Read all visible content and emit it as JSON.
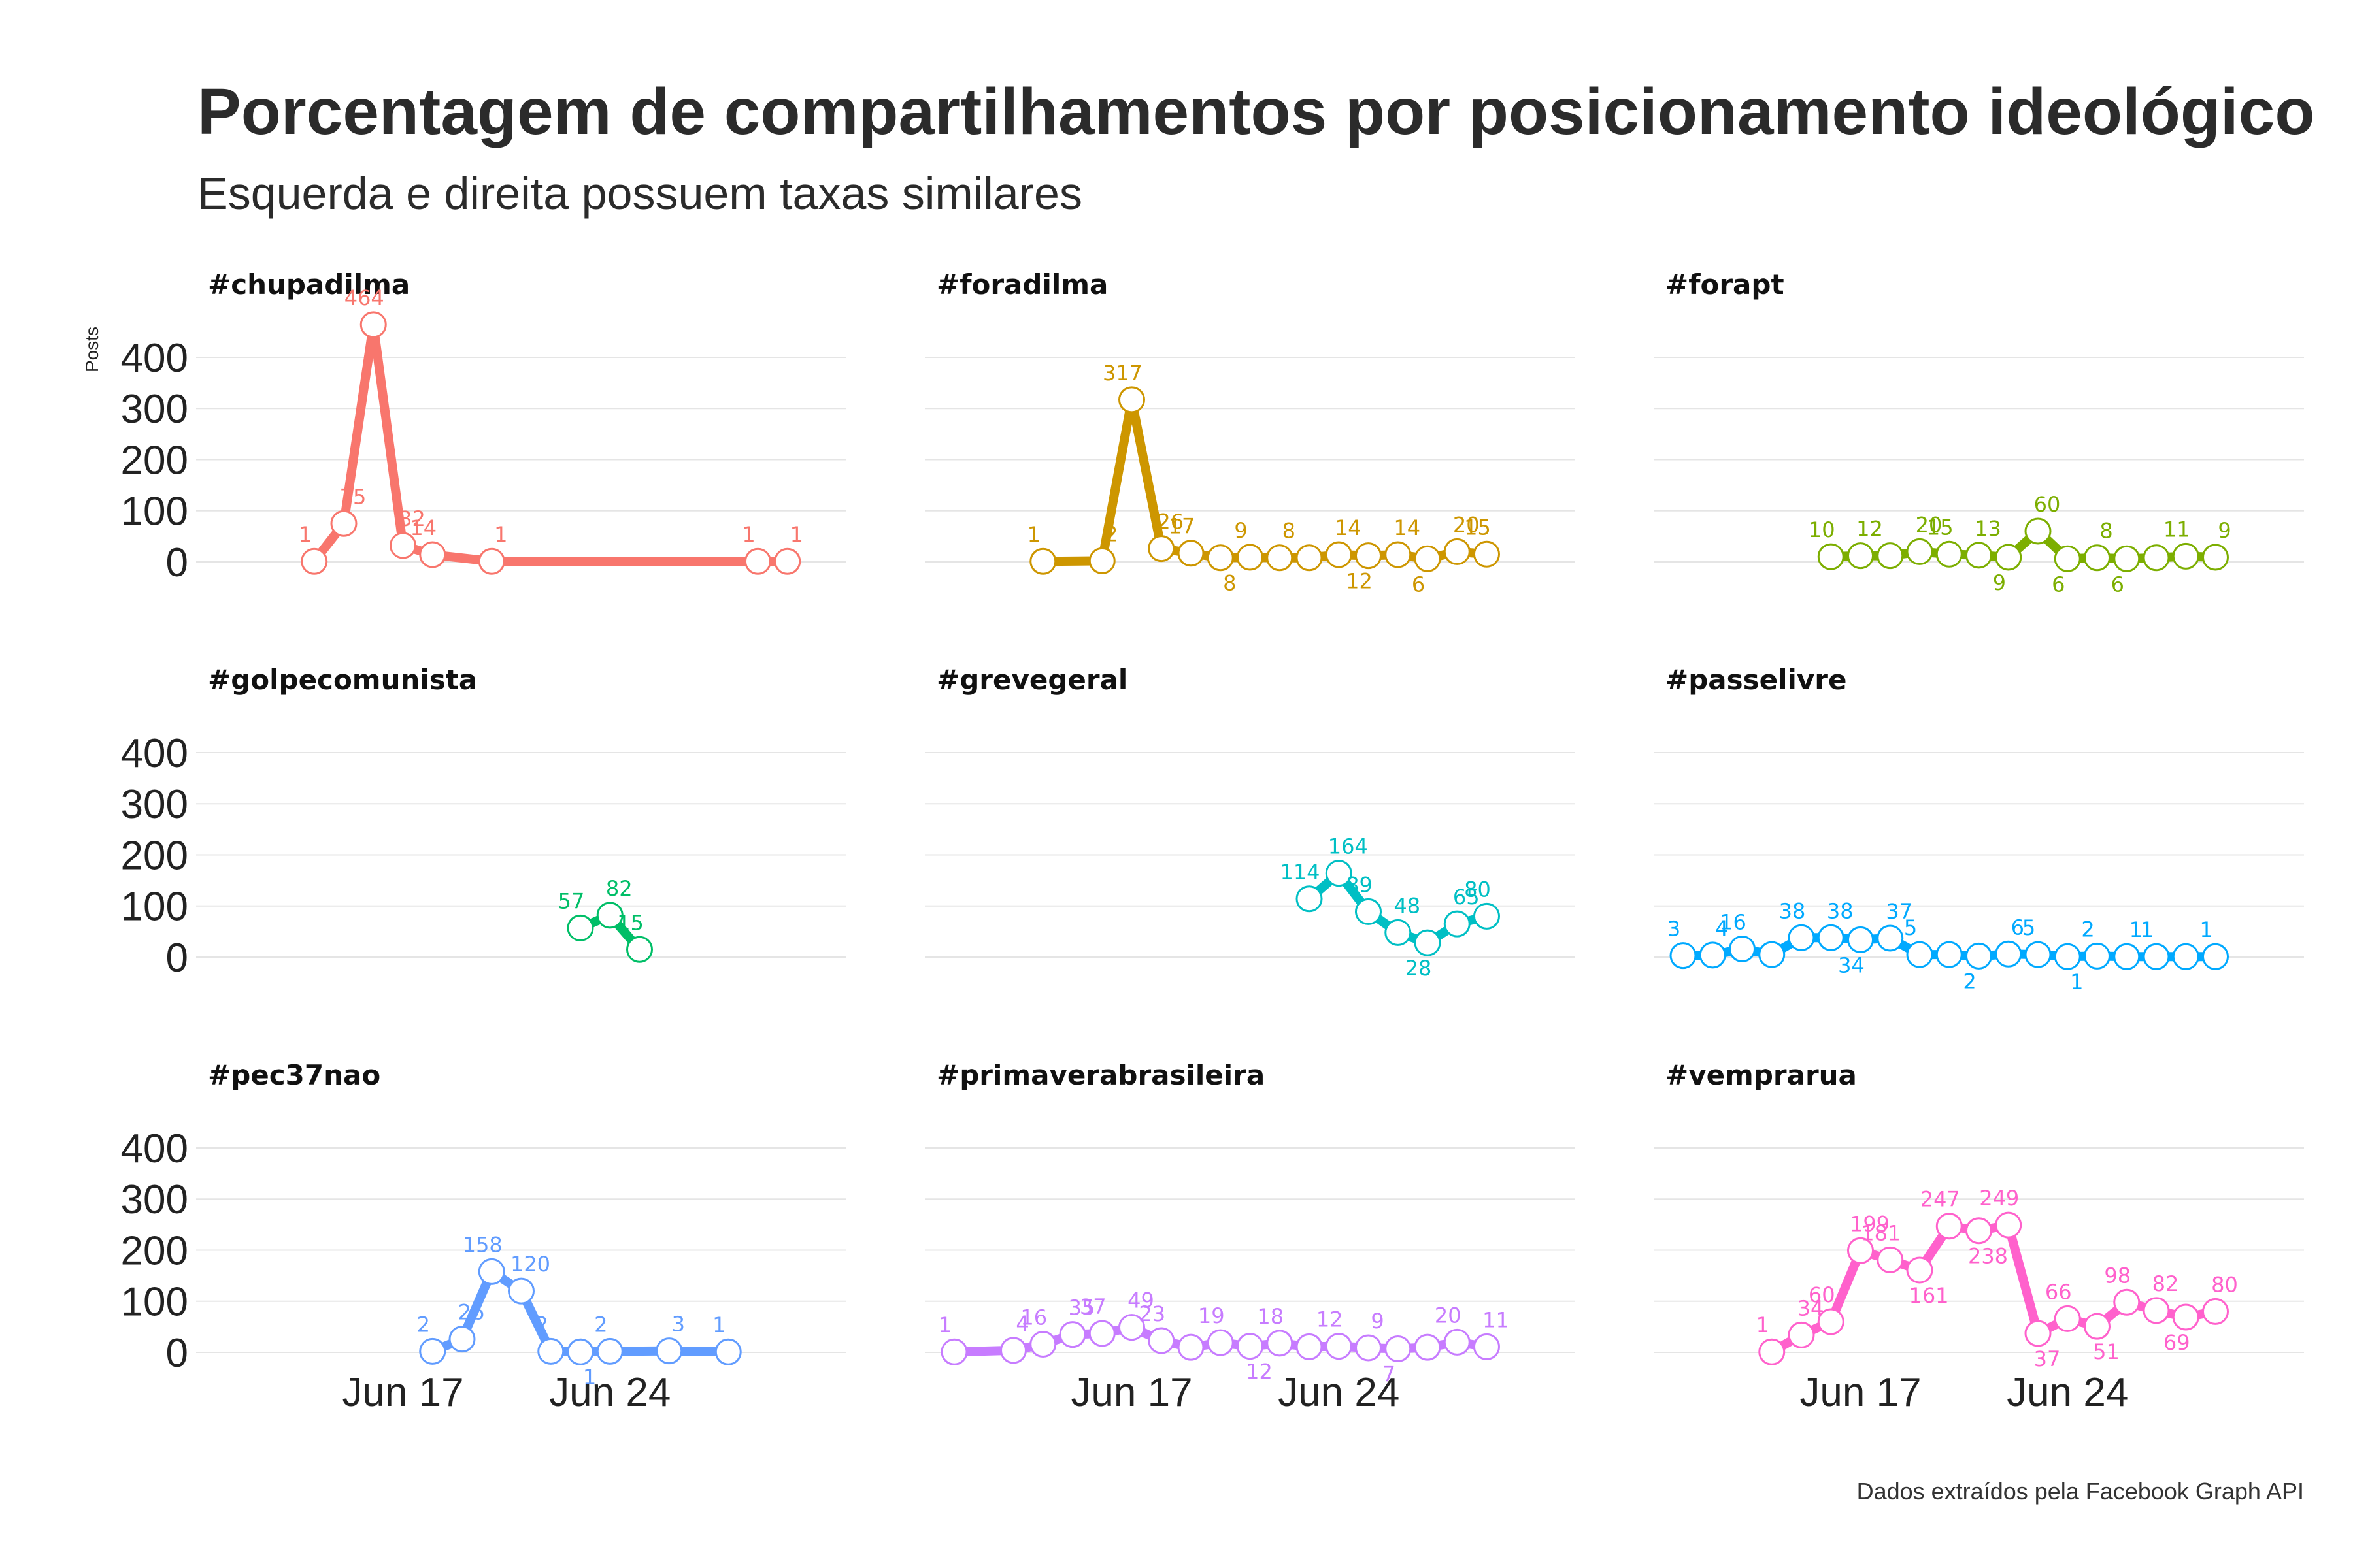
{
  "title": "Porcentagem de compartilhamentos por posicionamento ideológico",
  "subtitle": "Esquerda e direita possuem taxas similares",
  "caption": "Dados extraídos pela Facebook Graph API",
  "chart_data": {
    "type": "line",
    "facets": "3x3 grid, shared axes",
    "ylabel": "Posts",
    "xlabel": "",
    "ylim": [
      0,
      460
    ],
    "y_ticks": [
      0,
      100,
      200,
      300,
      400
    ],
    "x_ticks": [
      {
        "day": 17,
        "label": "Jun 17"
      },
      {
        "day": 24,
        "label": "Jun 24"
      }
    ],
    "x_unit": "day of June 2013",
    "xlim": [
      11,
      31
    ],
    "grid": true,
    "legend": "none",
    "series": [
      {
        "name": "#chupadilma",
        "color": "#F8766D",
        "x": [
          14,
          15,
          16,
          17,
          18,
          20,
          29,
          30
        ],
        "values": [
          1,
          75,
          464,
          32,
          14,
          1,
          1,
          1
        ],
        "labels": [
          "1",
          "75",
          "464",
          "32",
          "14",
          "1",
          "1",
          "1"
        ]
      },
      {
        "name": "#foradilma",
        "color": "#CD9600",
        "x": [
          14,
          16,
          17,
          18,
          19,
          20,
          21,
          22,
          23,
          24,
          25,
          26,
          27,
          28,
          29
        ],
        "values": [
          1,
          2,
          317,
          26,
          17,
          8,
          9,
          8,
          8,
          14,
          12,
          14,
          6,
          20,
          15
        ],
        "labels": [
          "1",
          "2",
          "317",
          "26",
          "17",
          "8",
          "9",
          "8",
          "",
          "14",
          "12",
          "14",
          "6",
          "20",
          "15"
        ]
      },
      {
        "name": "#forapt",
        "color": "#7CAE00",
        "x": [
          16,
          17,
          18,
          19,
          20,
          21,
          22,
          23,
          24,
          25,
          26,
          27,
          28,
          29
        ],
        "values": [
          10,
          12,
          12,
          20,
          15,
          13,
          9,
          60,
          6,
          8,
          6,
          8,
          11,
          9
        ],
        "labels": [
          "10",
          "12",
          "",
          "20",
          "15",
          "13",
          "9",
          "60",
          "6",
          "8",
          "6",
          "",
          "11",
          "9"
        ]
      },
      {
        "name": "#golpecomunista",
        "color": "#00BE67",
        "x": [
          23,
          24,
          25
        ],
        "values": [
          57,
          82,
          15
        ],
        "labels": [
          "57",
          "82",
          "15"
        ]
      },
      {
        "name": "#grevegeral",
        "color": "#00BFC4",
        "x": [
          23,
          24,
          25,
          26,
          27,
          28,
          29
        ],
        "values": [
          114,
          164,
          89,
          48,
          28,
          65,
          80
        ],
        "labels": [
          "114",
          "164",
          "89",
          "48",
          "28",
          "65",
          "80"
        ]
      },
      {
        "name": "#passelivre",
        "color": "#00A9FF",
        "x": [
          11,
          12,
          13,
          14,
          15,
          16,
          17,
          18,
          19,
          20,
          21,
          22,
          23,
          24,
          25,
          26,
          27,
          28,
          29
        ],
        "values": [
          3,
          4,
          16,
          5,
          38,
          38,
          34,
          37,
          5,
          5,
          2,
          6,
          5,
          1,
          2,
          1,
          1,
          1,
          1
        ],
        "labels": [
          "3",
          "4",
          "16",
          "",
          "38",
          "38",
          "34",
          "37",
          "5",
          "",
          "2",
          "6",
          "5",
          "1",
          "2",
          "1",
          "1",
          "",
          "1"
        ]
      },
      {
        "name": "#pec37nao",
        "color": "#619CFF",
        "x": [
          18,
          19,
          20,
          21,
          22,
          23,
          24,
          26,
          28
        ],
        "values": [
          2,
          26,
          158,
          120,
          2,
          1,
          2,
          3,
          1
        ],
        "labels": [
          "2",
          "26",
          "158",
          "120",
          "2",
          "1",
          "2",
          "3",
          "1"
        ]
      },
      {
        "name": "#primaverabrasileira",
        "color": "#C77CFF",
        "x": [
          11,
          13,
          14,
          15,
          16,
          17,
          18,
          19,
          20,
          21,
          22,
          23,
          24,
          25,
          26,
          27,
          28,
          29
        ],
        "values": [
          1,
          4,
          16,
          35,
          37,
          49,
          23,
          10,
          19,
          12,
          18,
          11,
          12,
          9,
          7,
          10,
          20,
          11
        ],
        "labels": [
          "1",
          "4",
          "16",
          "35",
          "37",
          "49",
          "23",
          "",
          "19",
          "12",
          "18",
          "",
          "12",
          "9",
          "7",
          "",
          "20",
          "11"
        ]
      },
      {
        "name": "#vemprarua",
        "color": "#FF61CC",
        "x": [
          14,
          15,
          16,
          17,
          18,
          19,
          20,
          21,
          22,
          23,
          24,
          25,
          26,
          27,
          28,
          29
        ],
        "values": [
          1,
          34,
          60,
          199,
          181,
          161,
          247,
          238,
          249,
          37,
          66,
          51,
          98,
          82,
          69,
          80
        ],
        "labels": [
          "1",
          "34",
          "60",
          "199",
          "181",
          "161",
          "247",
          "238",
          "249",
          "37",
          "66",
          "51",
          "98",
          "82",
          "69",
          "80"
        ]
      }
    ]
  }
}
